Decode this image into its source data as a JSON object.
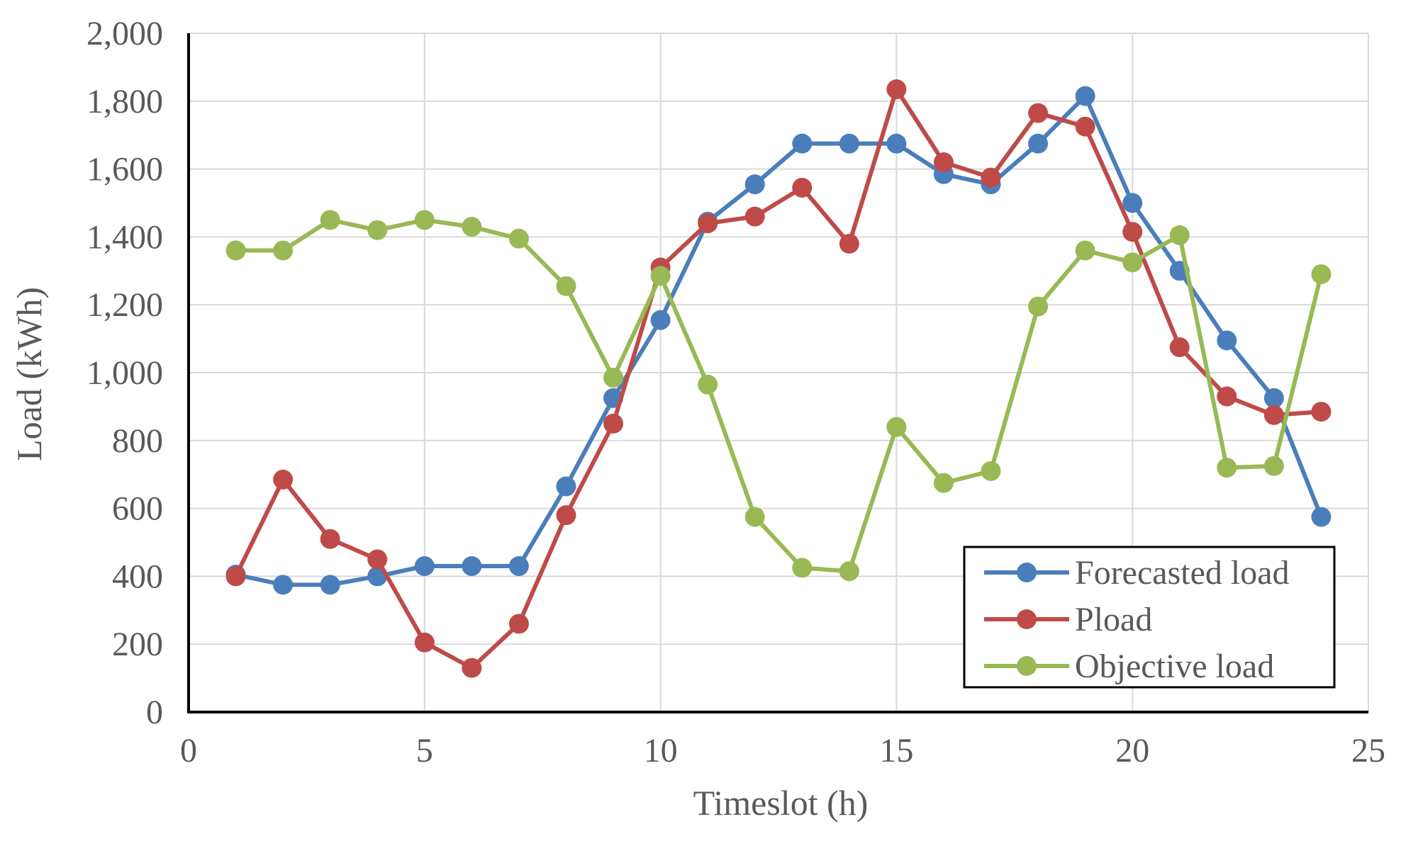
{
  "chart_data": {
    "type": "line",
    "title": "",
    "xlabel": "Timeslot (h)",
    "ylabel": "Load (kWh)",
    "xlim": [
      0,
      25
    ],
    "ylim": [
      0,
      2000
    ],
    "xticks": [
      0,
      5,
      10,
      15,
      20,
      25
    ],
    "xtick_labels": [
      "0",
      "5",
      "10",
      "15",
      "20",
      "25"
    ],
    "yticks": [
      0,
      200,
      400,
      600,
      800,
      1000,
      1200,
      1400,
      1600,
      1800,
      2000
    ],
    "ytick_labels": [
      "0",
      "200",
      "400",
      "600",
      "800",
      "1,000",
      "1,200",
      "1,400",
      "1,600",
      "1,800",
      "2,000"
    ],
    "grid": true,
    "legend_position": "bottom-right",
    "x": [
      1,
      2,
      3,
      4,
      5,
      6,
      7,
      8,
      9,
      10,
      11,
      12,
      13,
      14,
      15,
      16,
      17,
      18,
      19,
      20,
      21,
      22,
      23,
      24
    ],
    "series": [
      {
        "name": "Forecasted load",
        "color": "#4a7ebb",
        "values": [
          405,
          375,
          375,
          400,
          430,
          430,
          430,
          665,
          925,
          1155,
          1445,
          1555,
          1675,
          1675,
          1675,
          1585,
          1555,
          1675,
          1815,
          1500,
          1300,
          1095,
          925,
          575
        ]
      },
      {
        "name": "Pload",
        "color": "#be4b48",
        "values": [
          400,
          685,
          510,
          450,
          205,
          130,
          260,
          580,
          850,
          1310,
          1440,
          1460,
          1545,
          1380,
          1835,
          1620,
          1575,
          1765,
          1725,
          1415,
          1075,
          930,
          875,
          885
        ]
      },
      {
        "name": "Objective load",
        "color": "#98b954",
        "values": [
          1360,
          1360,
          1450,
          1420,
          1450,
          1430,
          1395,
          1255,
          985,
          1285,
          965,
          575,
          425,
          415,
          840,
          675,
          710,
          1195,
          1360,
          1325,
          1405,
          720,
          725,
          1290
        ]
      }
    ]
  }
}
